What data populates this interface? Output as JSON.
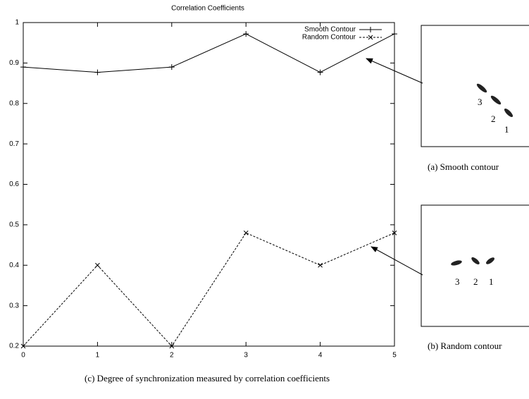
{
  "chart_data": {
    "type": "line",
    "title": "Correlation Coefficients",
    "x": [
      0,
      1,
      2,
      3,
      4,
      5
    ],
    "series": [
      {
        "name": "Smooth Contour",
        "color": "#000000",
        "marker": "plus",
        "dash": false,
        "values": [
          0.89,
          0.877,
          0.89,
          0.972,
          0.877,
          0.972
        ]
      },
      {
        "name": "Random Contour",
        "color": "#000000",
        "marker": "cross",
        "dash": true,
        "values": [
          0.2,
          0.4,
          0.2,
          0.48,
          0.4,
          0.48
        ]
      }
    ],
    "xlim": [
      0,
      5
    ],
    "xticks": [
      0,
      1,
      2,
      3,
      4,
      5
    ],
    "ylim": [
      0.2,
      1
    ],
    "yticks": [
      0.2,
      0.3,
      0.4,
      0.5,
      0.6,
      0.7,
      0.8,
      0.9,
      1
    ],
    "grid": false,
    "legend": "top-right"
  },
  "panels": [
    {
      "caption": "(a) Smooth contour",
      "labels": [
        "3",
        "2",
        "1"
      ]
    },
    {
      "caption": "(b) Random contour",
      "labels": [
        "3",
        "2",
        "1"
      ]
    }
  ],
  "caption": "(c) Degree of synchronization measured by correlation coefficients"
}
